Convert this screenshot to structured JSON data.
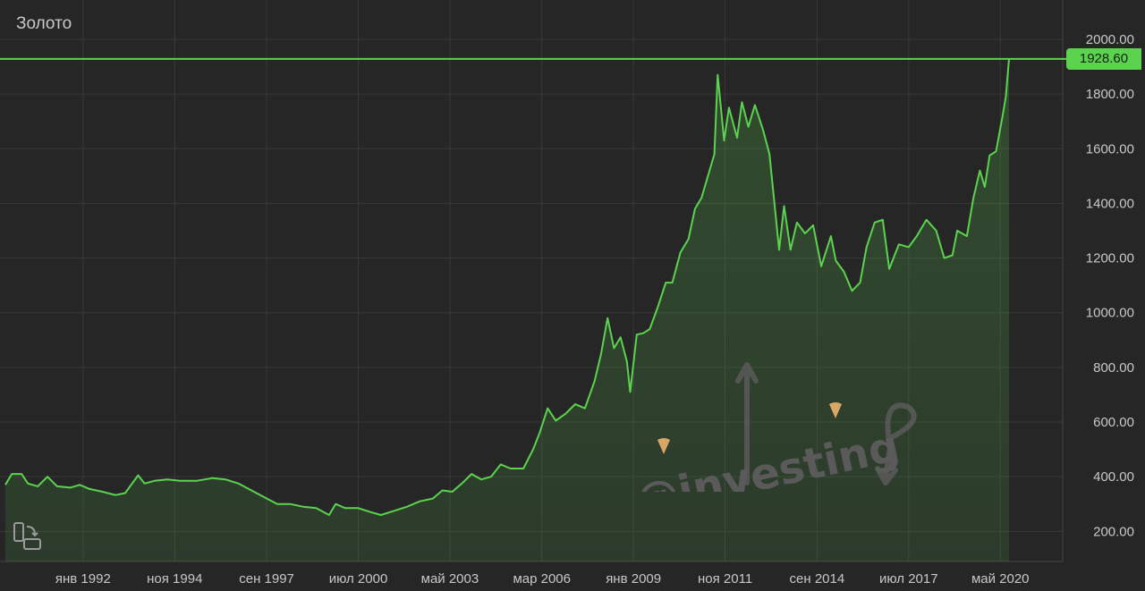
{
  "chart_data": {
    "type": "area",
    "title": "Золото",
    "last_value_label": "1928.60",
    "y_tick_labels": [
      "200.00",
      "400.00",
      "600.00",
      "800.00",
      "1000.00",
      "1200.00",
      "1400.00",
      "1600.00",
      "1800.00",
      "2000.00"
    ],
    "x_tick_labels": [
      "янв 1992",
      "ноя 1994",
      "сен 1997",
      "июл 2000",
      "май 2003",
      "мар 2006",
      "янв 2009",
      "ноя 2011",
      "сен 2014",
      "июл 2017",
      "май 2020"
    ],
    "x_tick_years": [
      1992.0,
      1994.83,
      1997.67,
      2000.5,
      2003.33,
      2006.17,
      2009.0,
      2011.83,
      2014.67,
      2017.5,
      2020.33
    ],
    "xlim": [
      1989.6,
      2020.6
    ],
    "ylim": [
      90,
      2040
    ],
    "grid": true,
    "series": [
      {
        "points": [
          [
            1989.6,
            370
          ],
          [
            1989.8,
            410
          ],
          [
            1990.1,
            410
          ],
          [
            1990.3,
            375
          ],
          [
            1990.6,
            365
          ],
          [
            1990.9,
            400
          ],
          [
            1991.2,
            365
          ],
          [
            1991.6,
            360
          ],
          [
            1991.9,
            370
          ],
          [
            1992.2,
            355
          ],
          [
            1992.6,
            345
          ],
          [
            1993.0,
            333
          ],
          [
            1993.3,
            340
          ],
          [
            1993.7,
            405
          ],
          [
            1993.9,
            375
          ],
          [
            1994.2,
            385
          ],
          [
            1994.6,
            390
          ],
          [
            1995.0,
            385
          ],
          [
            1995.5,
            385
          ],
          [
            1996.0,
            395
          ],
          [
            1996.4,
            390
          ],
          [
            1996.8,
            375
          ],
          [
            1997.2,
            350
          ],
          [
            1997.6,
            325
          ],
          [
            1998.0,
            300
          ],
          [
            1998.4,
            300
          ],
          [
            1998.8,
            290
          ],
          [
            1999.2,
            285
          ],
          [
            1999.6,
            260
          ],
          [
            1999.8,
            300
          ],
          [
            2000.1,
            285
          ],
          [
            2000.5,
            285
          ],
          [
            2000.9,
            270
          ],
          [
            2001.2,
            260
          ],
          [
            2001.6,
            275
          ],
          [
            2002.0,
            290
          ],
          [
            2002.4,
            310
          ],
          [
            2002.8,
            320
          ],
          [
            2003.1,
            350
          ],
          [
            2003.4,
            345
          ],
          [
            2003.7,
            375
          ],
          [
            2004.0,
            410
          ],
          [
            2004.3,
            390
          ],
          [
            2004.6,
            400
          ],
          [
            2004.9,
            445
          ],
          [
            2005.2,
            430
          ],
          [
            2005.6,
            430
          ],
          [
            2005.9,
            500
          ],
          [
            2006.1,
            560
          ],
          [
            2006.35,
            650
          ],
          [
            2006.6,
            605
          ],
          [
            2006.9,
            630
          ],
          [
            2007.2,
            665
          ],
          [
            2007.5,
            650
          ],
          [
            2007.8,
            750
          ],
          [
            2008.0,
            850
          ],
          [
            2008.2,
            980
          ],
          [
            2008.4,
            870
          ],
          [
            2008.6,
            910
          ],
          [
            2008.8,
            820
          ],
          [
            2008.9,
            710
          ],
          [
            2009.1,
            920
          ],
          [
            2009.3,
            925
          ],
          [
            2009.5,
            940
          ],
          [
            2009.75,
            1020
          ],
          [
            2010.0,
            1110
          ],
          [
            2010.2,
            1110
          ],
          [
            2010.45,
            1220
          ],
          [
            2010.7,
            1270
          ],
          [
            2010.9,
            1380
          ],
          [
            2011.1,
            1420
          ],
          [
            2011.35,
            1520
          ],
          [
            2011.5,
            1580
          ],
          [
            2011.6,
            1870
          ],
          [
            2011.8,
            1630
          ],
          [
            2011.95,
            1750
          ],
          [
            2012.2,
            1640
          ],
          [
            2012.35,
            1770
          ],
          [
            2012.55,
            1680
          ],
          [
            2012.75,
            1760
          ],
          [
            2013.0,
            1670
          ],
          [
            2013.2,
            1580
          ],
          [
            2013.5,
            1230
          ],
          [
            2013.65,
            1390
          ],
          [
            2013.85,
            1230
          ],
          [
            2014.05,
            1330
          ],
          [
            2014.3,
            1290
          ],
          [
            2014.55,
            1320
          ],
          [
            2014.8,
            1170
          ],
          [
            2015.1,
            1280
          ],
          [
            2015.25,
            1190
          ],
          [
            2015.5,
            1150
          ],
          [
            2015.75,
            1080
          ],
          [
            2016.0,
            1110
          ],
          [
            2016.2,
            1240
          ],
          [
            2016.45,
            1330
          ],
          [
            2016.7,
            1340
          ],
          [
            2016.9,
            1160
          ],
          [
            2017.2,
            1250
          ],
          [
            2017.5,
            1240
          ],
          [
            2017.75,
            1280
          ],
          [
            2018.05,
            1340
          ],
          [
            2018.35,
            1300
          ],
          [
            2018.6,
            1200
          ],
          [
            2018.85,
            1210
          ],
          [
            2019.0,
            1300
          ],
          [
            2019.3,
            1280
          ],
          [
            2019.5,
            1420
          ],
          [
            2019.7,
            1520
          ],
          [
            2019.85,
            1460
          ],
          [
            2020.0,
            1575
          ],
          [
            2020.2,
            1590
          ],
          [
            2020.4,
            1720
          ],
          [
            2020.5,
            1790
          ],
          [
            2020.6,
            1928.6
          ]
        ]
      }
    ]
  },
  "icons": {
    "rotate": "rotate-screen-icon"
  },
  "watermark": {
    "text": "@investing"
  },
  "colors": {
    "line": "#5bd34f",
    "background": "#262626",
    "grid": "#383838",
    "badge": "#5bd34f"
  }
}
